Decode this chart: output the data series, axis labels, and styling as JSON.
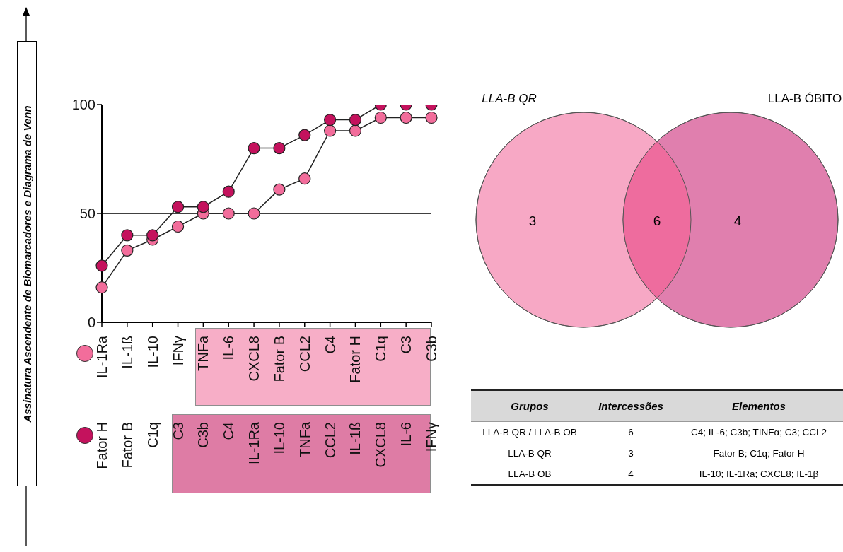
{
  "chart_data": [
    {
      "type": "line",
      "ylabel": "Assinatura Ascendente de Biomarcadores e Diagrama de Venn",
      "categories": [
        "IL-1Ra",
        "IL-1ß",
        "IL-10",
        "IFNγ",
        "TNFa",
        "IL-6",
        "CXCL8",
        "Fator B",
        "CCL2",
        "C4",
        "Fator H",
        "C1q",
        "C3",
        "C3b"
      ],
      "annotations": [
        "Fator H",
        "Fator B",
        "C1q",
        "C3",
        "C3b",
        "C4",
        "IL-1Ra",
        "IL-10",
        "TNFa",
        "CCL2",
        "IL-1ß",
        "CXCL8",
        "IL-6",
        "IFNγ"
      ],
      "series": [
        {
          "color": "#f26d9b",
          "values": [
            16,
            33,
            38,
            44,
            50,
            50,
            50,
            61,
            66,
            88,
            88,
            94,
            94,
            94
          ]
        },
        {
          "color": "#c4125d",
          "values": [
            26,
            40,
            40,
            53,
            53,
            60,
            80,
            80,
            86,
            93,
            93,
            100,
            100,
            100
          ]
        }
      ],
      "ylim": [
        0,
        100
      ],
      "yticks": [
        0,
        50,
        100
      ],
      "ref_lines": [
        {
          "axis": "y",
          "value": 50
        }
      ],
      "marker": "circle",
      "grid": false,
      "legend": false
    },
    {
      "type": "other",
      "annotations": [
        "LLA-B QR",
        "LLA-B ÓBITO"
      ],
      "values": [
        3,
        6,
        4
      ],
      "data_labels": true,
      "colors": [
        "#f7a8c5",
        "#ee6c9e",
        "#e07fae"
      ]
    },
    {
      "type": "other",
      "categories": [
        "Grupos",
        "Intercessões",
        "Elementos"
      ],
      "cell_labels": [
        [
          "LLA-B QR / LLA-B OB",
          "6",
          "C4; IL-6; C3b; TINFα; C3; CCL2"
        ],
        [
          "LLA-B QR",
          "3",
          "Fator B; C1q; Fator H"
        ],
        [
          "LLA-B OB",
          "4",
          "IL-10; IL-1Ra; CXCL8; IL-1β"
        ]
      ]
    }
  ]
}
